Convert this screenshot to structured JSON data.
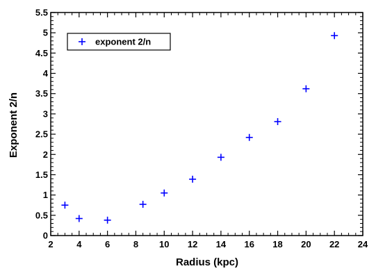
{
  "chart_data": {
    "type": "scatter",
    "xlabel": "Radius  (kpc)",
    "ylabel": "Exponent   2/n",
    "xlim": [
      2,
      24
    ],
    "ylim": [
      0,
      5.5
    ],
    "x_ticks": [
      2,
      4,
      6,
      8,
      10,
      12,
      14,
      16,
      18,
      20,
      22,
      24
    ],
    "y_ticks": [
      0,
      0.5,
      1,
      1.5,
      2,
      2.5,
      3,
      3.5,
      4,
      4.5,
      5,
      5.5
    ],
    "grid": false,
    "legend_position": "top-left",
    "series": [
      {
        "name": "exponent 2/n",
        "color": "#0000ff",
        "marker": "plus",
        "x": [
          3,
          4,
          6,
          8.5,
          10,
          12,
          14,
          16,
          18,
          20,
          22
        ],
        "y": [
          0.75,
          0.42,
          0.38,
          0.77,
          1.05,
          1.39,
          1.93,
          2.42,
          2.81,
          3.62,
          4.93
        ]
      }
    ]
  }
}
